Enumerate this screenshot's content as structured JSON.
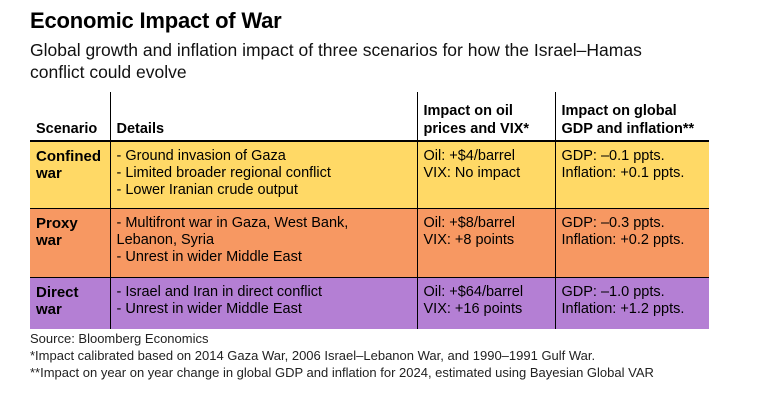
{
  "title": "Economic Impact of War",
  "subtitle": "Global growth and inflation impact of three scenarios for how the Israel–Hamas conflict could evolve",
  "table": {
    "headers": [
      "Scenario",
      "Details",
      "Impact on oil prices and VIX*",
      "Impact on global GDP and inflation**"
    ],
    "rows": [
      {
        "scenario": "Confined war",
        "details": [
          "- Ground invasion of Gaza",
          "- Limited broader regional conflict",
          "- Lower Iranian crude output"
        ],
        "oil_vix": [
          "Oil: +$4/barrel",
          "VIX: No impact"
        ],
        "gdp_inflation": [
          "GDP: –0.1 ppts.",
          "Inflation: +0.1 ppts."
        ],
        "color": "#ffd966"
      },
      {
        "scenario": "Proxy war",
        "details": [
          "- Multifront war in Gaza, West Bank, Lebanon, Syria",
          "- Unrest in wider Middle East"
        ],
        "oil_vix": [
          "Oil: +$8/barrel",
          "VIX: +8 points"
        ],
        "gdp_inflation": [
          "GDP: –0.3 ppts.",
          "Inflation: +0.2 ppts."
        ],
        "color": "#f79862"
      },
      {
        "scenario": "Direct war",
        "details": [
          "- Israel and Iran in direct conflict",
          "- Unrest in wider Middle East"
        ],
        "oil_vix": [
          "Oil: +$64/barrel",
          "VIX: +16 points"
        ],
        "gdp_inflation": [
          "GDP: –1.0 ppts.",
          "Inflation: +1.2 ppts."
        ],
        "color": "#b47fd4"
      }
    ]
  },
  "footnotes": {
    "source": "Source: Bloomberg Economics",
    "note1": "*Impact calibrated based on 2014 Gaza War, 2006 Israel–Lebanon War, and 1990–1991 Gulf War.",
    "note2": "**Impact on year on year change in global GDP and inflation for 2024, estimated using Bayesian Global VAR"
  }
}
